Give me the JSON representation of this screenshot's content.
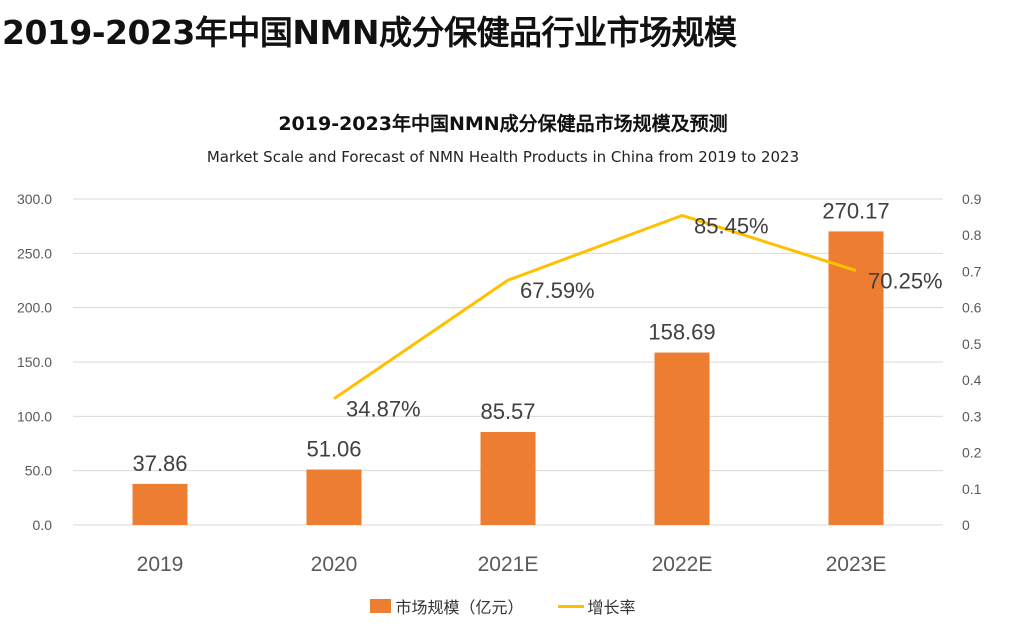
{
  "page": {
    "title": "2019-2023年中国NMN成分保健品行业市场规模"
  },
  "colors": {
    "bar": "#ED7D31",
    "line": "#FFC000",
    "grid": "#D9D9D9",
    "axis_text": "#595959",
    "label_text": "#404040"
  },
  "chart_data": {
    "type": "bar+line",
    "title": "2019-2023年中国NMN成分保健品市场规模及预测",
    "subtitle": "Market Scale and Forecast of NMN Health Products in China from 2019 to 2023",
    "categories": [
      "2019",
      "2020",
      "2021E",
      "2022E",
      "2023E"
    ],
    "series": [
      {
        "name": "市场规模（亿元）",
        "type": "bar",
        "axis": "left",
        "values": [
          37.86,
          51.06,
          85.57,
          158.69,
          270.17
        ],
        "labels": [
          "37.86",
          "51.06",
          "85.57",
          "158.69",
          "270.17"
        ]
      },
      {
        "name": "增长率",
        "type": "line",
        "axis": "right",
        "values": [
          null,
          0.3487,
          0.6759,
          0.8545,
          0.7025
        ],
        "labels": [
          "",
          "34.87%",
          "67.59%",
          "85.45%",
          "70.25%"
        ]
      }
    ],
    "y_left": {
      "ylim": [
        0,
        300
      ],
      "ticks": [
        "0.0",
        "50.0",
        "100.0",
        "150.0",
        "200.0",
        "250.0",
        "300.0"
      ],
      "tick_values": [
        0,
        50,
        100,
        150,
        200,
        250,
        300
      ]
    },
    "y_right": {
      "ylim": [
        0,
        0.9
      ],
      "ticks": [
        "0",
        "0.1",
        "0.2",
        "0.3",
        "0.4",
        "0.5",
        "0.6",
        "0.7",
        "0.8",
        "0.9"
      ],
      "tick_values": [
        0,
        0.1,
        0.2,
        0.3,
        0.4,
        0.5,
        0.6,
        0.7,
        0.8,
        0.9
      ]
    },
    "grid": true,
    "legend_position": "bottom",
    "legend": [
      "市场规模（亿元）",
      "增长率"
    ]
  }
}
